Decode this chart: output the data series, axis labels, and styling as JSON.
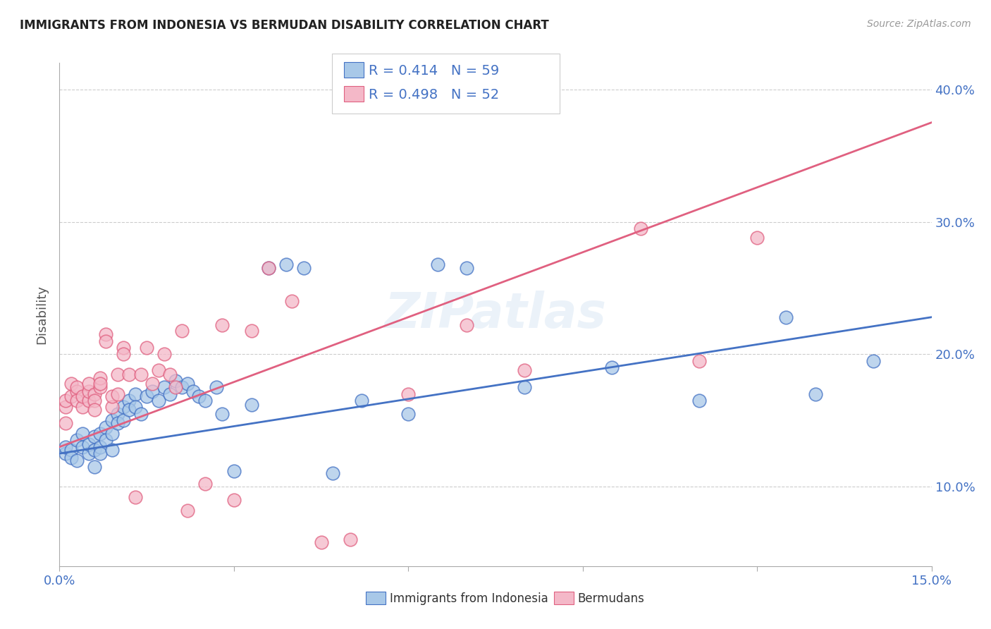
{
  "title": "IMMIGRANTS FROM INDONESIA VS BERMUDAN DISABILITY CORRELATION CHART",
  "source": "Source: ZipAtlas.com",
  "ylabel": "Disability",
  "xlim": [
    0.0,
    0.15
  ],
  "ylim": [
    0.04,
    0.42
  ],
  "yticks": [
    0.1,
    0.2,
    0.3,
    0.4
  ],
  "ytick_labels": [
    "10.0%",
    "20.0%",
    "30.0%",
    "40.0%"
  ],
  "xticks": [
    0.0,
    0.03,
    0.06,
    0.09,
    0.12,
    0.15
  ],
  "xtick_labels_show": [
    "0.0%",
    "15.0%"
  ],
  "blue_color": "#a8c8e8",
  "pink_color": "#f4b8c8",
  "blue_line_color": "#4472c4",
  "pink_line_color": "#e06080",
  "text_blue": "#4472c4",
  "legend_R1": "R = 0.414",
  "legend_N1": "N = 59",
  "legend_R2": "R = 0.498",
  "legend_N2": "N = 52",
  "watermark": "ZIPatlas",
  "blue_scatter_x": [
    0.001,
    0.001,
    0.002,
    0.002,
    0.003,
    0.003,
    0.004,
    0.004,
    0.005,
    0.005,
    0.006,
    0.006,
    0.006,
    0.007,
    0.007,
    0.007,
    0.008,
    0.008,
    0.009,
    0.009,
    0.009,
    0.01,
    0.01,
    0.011,
    0.011,
    0.012,
    0.012,
    0.013,
    0.013,
    0.014,
    0.015,
    0.016,
    0.017,
    0.018,
    0.019,
    0.02,
    0.021,
    0.022,
    0.023,
    0.024,
    0.025,
    0.027,
    0.028,
    0.03,
    0.033,
    0.036,
    0.039,
    0.042,
    0.047,
    0.052,
    0.06,
    0.065,
    0.07,
    0.08,
    0.095,
    0.11,
    0.125,
    0.13,
    0.14
  ],
  "blue_scatter_y": [
    0.125,
    0.13,
    0.128,
    0.122,
    0.135,
    0.12,
    0.13,
    0.14,
    0.125,
    0.132,
    0.128,
    0.138,
    0.115,
    0.14,
    0.13,
    0.125,
    0.145,
    0.135,
    0.15,
    0.14,
    0.128,
    0.155,
    0.148,
    0.16,
    0.15,
    0.165,
    0.158,
    0.17,
    0.16,
    0.155,
    0.168,
    0.172,
    0.165,
    0.175,
    0.17,
    0.18,
    0.175,
    0.178,
    0.172,
    0.168,
    0.165,
    0.175,
    0.155,
    0.112,
    0.162,
    0.265,
    0.268,
    0.265,
    0.11,
    0.165,
    0.155,
    0.268,
    0.265,
    0.175,
    0.19,
    0.165,
    0.228,
    0.17,
    0.195
  ],
  "pink_scatter_x": [
    0.001,
    0.001,
    0.001,
    0.002,
    0.002,
    0.003,
    0.003,
    0.003,
    0.004,
    0.004,
    0.005,
    0.005,
    0.005,
    0.006,
    0.006,
    0.006,
    0.007,
    0.007,
    0.007,
    0.008,
    0.008,
    0.009,
    0.009,
    0.01,
    0.01,
    0.011,
    0.011,
    0.012,
    0.013,
    0.014,
    0.015,
    0.016,
    0.017,
    0.018,
    0.019,
    0.02,
    0.021,
    0.022,
    0.025,
    0.028,
    0.03,
    0.033,
    0.036,
    0.04,
    0.045,
    0.05,
    0.06,
    0.07,
    0.08,
    0.1,
    0.11,
    0.12
  ],
  "pink_scatter_y": [
    0.148,
    0.16,
    0.165,
    0.168,
    0.178,
    0.172,
    0.165,
    0.175,
    0.16,
    0.168,
    0.165,
    0.172,
    0.178,
    0.17,
    0.165,
    0.158,
    0.175,
    0.182,
    0.178,
    0.215,
    0.21,
    0.16,
    0.168,
    0.17,
    0.185,
    0.205,
    0.2,
    0.185,
    0.092,
    0.185,
    0.205,
    0.178,
    0.188,
    0.2,
    0.185,
    0.175,
    0.218,
    0.082,
    0.102,
    0.222,
    0.09,
    0.218,
    0.265,
    0.24,
    0.058,
    0.06,
    0.17,
    0.222,
    0.188,
    0.295,
    0.195,
    0.288
  ],
  "blue_line_x": [
    0.0,
    0.15
  ],
  "blue_line_y": [
    0.125,
    0.228
  ],
  "pink_line_x": [
    0.0,
    0.15
  ],
  "pink_line_y": [
    0.13,
    0.375
  ]
}
